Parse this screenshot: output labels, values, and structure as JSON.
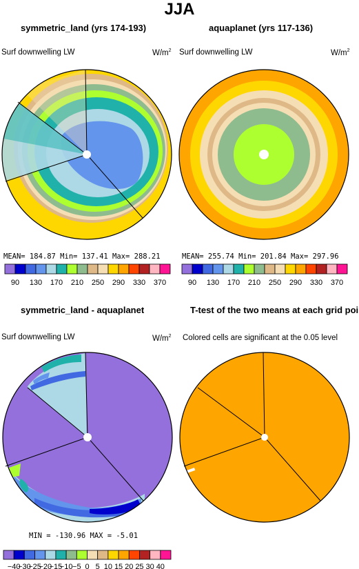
{
  "figure": {
    "title": "JJA"
  },
  "panels": [
    {
      "title": "symmetric_land (yrs 174-193)",
      "label": "Surf downwelling LW",
      "units_base": "W/m",
      "units_exp": "2",
      "stats": "MEAN= 184.87  Min= 137.41  Max= 288.21"
    },
    {
      "title": "aquaplanet (yrs 117-136)",
      "label": "Surf downwelling LW",
      "units_base": "W/m",
      "units_exp": "2",
      "stats": "MEAN= 255.74  Min= 201.84  Max= 297.96"
    },
    {
      "title": "symmetric_land - aquaplanet",
      "label": "Surf downwelling LW",
      "units_base": "W/m",
      "units_exp": "2",
      "stats": "MIN = -130.96  MAX =  -5.01"
    },
    {
      "title": "T-test of the two means at each grid point",
      "label": "Colored cells are significant at the 0.05 level"
    }
  ],
  "chart_data": [
    {
      "type": "heatmap",
      "title": "symmetric_land (yrs 174-193)",
      "projection": "polar stereographic",
      "variable": "Surf downwelling LW",
      "units": "W/m2",
      "mean": 184.87,
      "min": 137.41,
      "max": 288.21,
      "levels": [
        90,
        110,
        130,
        150,
        170,
        190,
        210,
        230,
        250,
        270,
        290,
        310,
        330,
        350,
        370
      ],
      "colorbar_labels": [
        "90",
        "130",
        "170",
        "210",
        "250",
        "290",
        "330",
        "370"
      ],
      "colors": [
        "#9370db",
        "#0000cd",
        "#4169e1",
        "#6495ed",
        "#add8e6",
        "#20b2aa",
        "#adff2f",
        "#8fbc8f",
        "#deb887",
        "#f5deb3",
        "#ffd700",
        "#ffa500",
        "#ff4500",
        "#b22222",
        "#ffb6c1",
        "#ff1493"
      ]
    },
    {
      "type": "heatmap",
      "title": "aquaplanet (yrs 117-136)",
      "projection": "polar stereographic",
      "variable": "Surf downwelling LW",
      "units": "W/m2",
      "mean": 255.74,
      "min": 201.84,
      "max": 297.96,
      "levels": [
        90,
        110,
        130,
        150,
        170,
        190,
        210,
        230,
        250,
        270,
        290,
        310,
        330,
        350,
        370
      ],
      "colorbar_labels": [
        "90",
        "130",
        "170",
        "210",
        "250",
        "290",
        "330",
        "370"
      ],
      "colors": [
        "#9370db",
        "#0000cd",
        "#4169e1",
        "#6495ed",
        "#add8e6",
        "#20b2aa",
        "#adff2f",
        "#8fbc8f",
        "#deb887",
        "#f5deb3",
        "#ffd700",
        "#ffa500",
        "#ff4500",
        "#b22222",
        "#ffb6c1",
        "#ff1493"
      ]
    },
    {
      "type": "heatmap",
      "title": "symmetric_land - aquaplanet",
      "projection": "polar stereographic",
      "variable": "Surf downwelling LW",
      "units": "W/m2",
      "min": -130.96,
      "max": -5.01,
      "levels": [
        -40,
        -30,
        -25,
        -20,
        -15,
        -10,
        -5,
        0,
        5,
        10,
        15,
        20,
        25,
        30,
        40
      ],
      "colorbar_labels": [
        "-40",
        "-30",
        "-25",
        "-20",
        "-15",
        "-10",
        "-5",
        "0",
        "5",
        "10",
        "15",
        "20",
        "25",
        "30",
        "40"
      ],
      "colors": [
        "#9370db",
        "#0000cd",
        "#4169e1",
        "#6495ed",
        "#add8e6",
        "#20b2aa",
        "#8fbc8f",
        "#adff2f",
        "#f5deb3",
        "#deb887",
        "#ffd700",
        "#ffa500",
        "#ff4500",
        "#b22222",
        "#ffb6c1",
        "#ff1493"
      ]
    },
    {
      "type": "heatmap",
      "title": "T-test of the two means at each grid point",
      "projection": "polar stereographic",
      "note": "Colored cells are significant at the 0.05 level",
      "significance_level": 0.05,
      "fill_color": "#ffa500"
    }
  ]
}
